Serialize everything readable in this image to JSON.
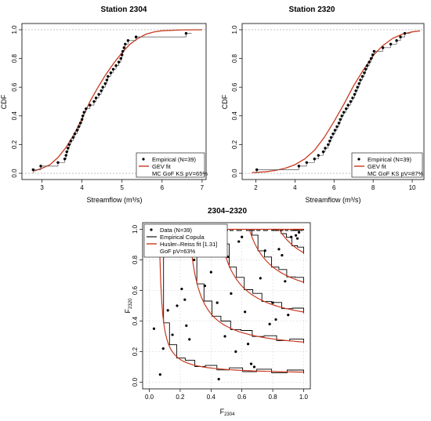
{
  "colors": {
    "fit": "#c8391f",
    "empirical": "#000000",
    "reference": "#9a9a9a"
  },
  "chart_data": [
    {
      "type": "line",
      "title": "Station 2304",
      "xlabel": "Streamflow (m³/s)",
      "ylabel": "CDF",
      "xlim": [
        2.5,
        7.1
      ],
      "ylim": [
        0,
        1
      ],
      "xticks": [
        "3",
        "4",
        "5",
        "6",
        "7"
      ],
      "yticks": [
        "0.0",
        "0.2",
        "0.4",
        "0.6",
        "0.8",
        "1.0"
      ],
      "legend_position": "bottom-right",
      "legend": [
        "Empirical (N=39)",
        "GEV fit",
        "MC GoF KS pV=65%"
      ],
      "series": [
        {
          "name": "Empirical (N=39)",
          "x": [
            2.78,
            2.97,
            3.4,
            3.57,
            3.6,
            3.62,
            3.65,
            3.68,
            3.72,
            3.78,
            3.82,
            3.88,
            3.92,
            3.96,
            4.0,
            4.02,
            4.05,
            4.1,
            4.2,
            4.3,
            4.35,
            4.42,
            4.48,
            4.52,
            4.58,
            4.62,
            4.65,
            4.72,
            4.78,
            4.85,
            4.92,
            4.97,
            5.0,
            5.02,
            5.05,
            5.08,
            5.15,
            5.35,
            6.6
          ],
          "y": [
            0.025,
            0.05,
            0.075,
            0.1,
            0.125,
            0.15,
            0.175,
            0.2,
            0.225,
            0.25,
            0.275,
            0.3,
            0.325,
            0.35,
            0.375,
            0.4,
            0.425,
            0.45,
            0.475,
            0.5,
            0.525,
            0.55,
            0.575,
            0.6,
            0.625,
            0.65,
            0.675,
            0.7,
            0.725,
            0.75,
            0.775,
            0.8,
            0.825,
            0.85,
            0.875,
            0.9,
            0.925,
            0.95,
            0.975
          ]
        },
        {
          "name": "GEV fit",
          "x": [
            2.8,
            3.0,
            3.2,
            3.4,
            3.6,
            3.8,
            4.0,
            4.2,
            4.4,
            4.6,
            4.8,
            5.0,
            5.2,
            5.4,
            5.6,
            5.8,
            6.0,
            6.5,
            7.0
          ],
          "y": [
            0.015,
            0.035,
            0.06,
            0.11,
            0.18,
            0.27,
            0.38,
            0.5,
            0.6,
            0.69,
            0.77,
            0.84,
            0.9,
            0.94,
            0.97,
            0.985,
            0.993,
            0.999,
            1.0
          ]
        }
      ]
    },
    {
      "type": "line",
      "title": "Station 2320",
      "xlabel": "Streamflow (m³/s)",
      "ylabel": "CDF",
      "xlim": [
        1.3,
        10.6
      ],
      "ylim": [
        0,
        1
      ],
      "xticks": [
        "2",
        "4",
        "6",
        "8",
        "10"
      ],
      "yticks": [
        "0.0",
        "0.2",
        "0.4",
        "0.6",
        "0.8",
        "1.0"
      ],
      "legend_position": "bottom-right",
      "legend": [
        "Empirical (N=39)",
        "GEV fit",
        "MC GoF KS pV=87%"
      ],
      "series": [
        {
          "name": "Empirical (N=39)",
          "x": [
            2.05,
            4.2,
            4.6,
            5.0,
            5.2,
            5.45,
            5.55,
            5.7,
            5.78,
            5.85,
            5.95,
            6.05,
            6.15,
            6.25,
            6.32,
            6.4,
            6.5,
            6.62,
            6.72,
            6.85,
            6.95,
            7.05,
            7.12,
            7.2,
            7.28,
            7.35,
            7.45,
            7.55,
            7.62,
            7.7,
            7.8,
            7.9,
            7.98,
            8.05,
            8.5,
            8.9,
            9.2,
            9.4,
            9.62
          ],
          "y": [
            0.025,
            0.05,
            0.075,
            0.1,
            0.125,
            0.15,
            0.175,
            0.2,
            0.225,
            0.25,
            0.275,
            0.3,
            0.325,
            0.35,
            0.375,
            0.4,
            0.425,
            0.45,
            0.475,
            0.5,
            0.525,
            0.55,
            0.575,
            0.6,
            0.625,
            0.65,
            0.675,
            0.7,
            0.725,
            0.75,
            0.775,
            0.8,
            0.825,
            0.85,
            0.875,
            0.9,
            0.925,
            0.95,
            0.975
          ]
        },
        {
          "name": "GEV fit",
          "x": [
            1.8,
            2.5,
            3.0,
            3.5,
            4.0,
            4.5,
            5.0,
            5.5,
            6.0,
            6.5,
            7.0,
            7.5,
            8.0,
            8.5,
            9.0,
            9.5,
            10.0,
            10.4
          ],
          "y": [
            0.005,
            0.01,
            0.02,
            0.035,
            0.06,
            0.1,
            0.16,
            0.25,
            0.36,
            0.48,
            0.61,
            0.72,
            0.82,
            0.89,
            0.94,
            0.97,
            0.985,
            0.992
          ]
        }
      ]
    },
    {
      "type": "scatter",
      "title": "2304–2320",
      "xlabel": "F2304",
      "ylabel": "F2320",
      "xlim": [
        0,
        1
      ],
      "ylim": [
        0,
        1
      ],
      "xticks": [
        "0.0",
        "0.2",
        "0.4",
        "0.6",
        "0.8",
        "1.0"
      ],
      "yticks": [
        "0.0",
        "0.2",
        "0.4",
        "0.6",
        "0.8",
        "1.0"
      ],
      "legend_position": "top-left",
      "legend": [
        "Data (N=39)",
        "Empirical Copula",
        "Husler–Reiss fit [1.31]",
        "GoF pV=63%"
      ],
      "contour_levels": [
        0.05,
        0.2,
        0.35,
        0.5,
        0.65,
        0.8,
        0.93
      ],
      "series": [
        {
          "name": "Data (N=39)",
          "x": [
            0.03,
            0.07,
            0.09,
            0.12,
            0.15,
            0.18,
            0.21,
            0.23,
            0.24,
            0.26,
            0.29,
            0.33,
            0.36,
            0.4,
            0.45,
            0.49,
            0.51,
            0.53,
            0.56,
            0.58,
            0.6,
            0.62,
            0.66,
            0.68,
            0.72,
            0.75,
            0.78,
            0.8,
            0.82,
            0.84,
            0.86,
            0.88,
            0.9,
            0.92,
            0.95,
            0.96,
            0.97,
            0.44,
            0.64
          ],
          "y": [
            0.35,
            0.05,
            0.22,
            0.47,
            0.31,
            0.5,
            0.61,
            0.54,
            0.37,
            0.28,
            0.8,
            0.93,
            0.63,
            0.72,
            0.02,
            0.3,
            0.82,
            0.58,
            0.2,
            0.92,
            0.95,
            0.46,
            0.12,
            0.1,
            0.68,
            0.86,
            0.38,
            0.52,
            0.41,
            0.87,
            0.83,
            0.66,
            0.44,
            0.95,
            0.96,
            0.94,
            0.98,
            0.52,
            0.25
          ]
        }
      ]
    }
  ]
}
